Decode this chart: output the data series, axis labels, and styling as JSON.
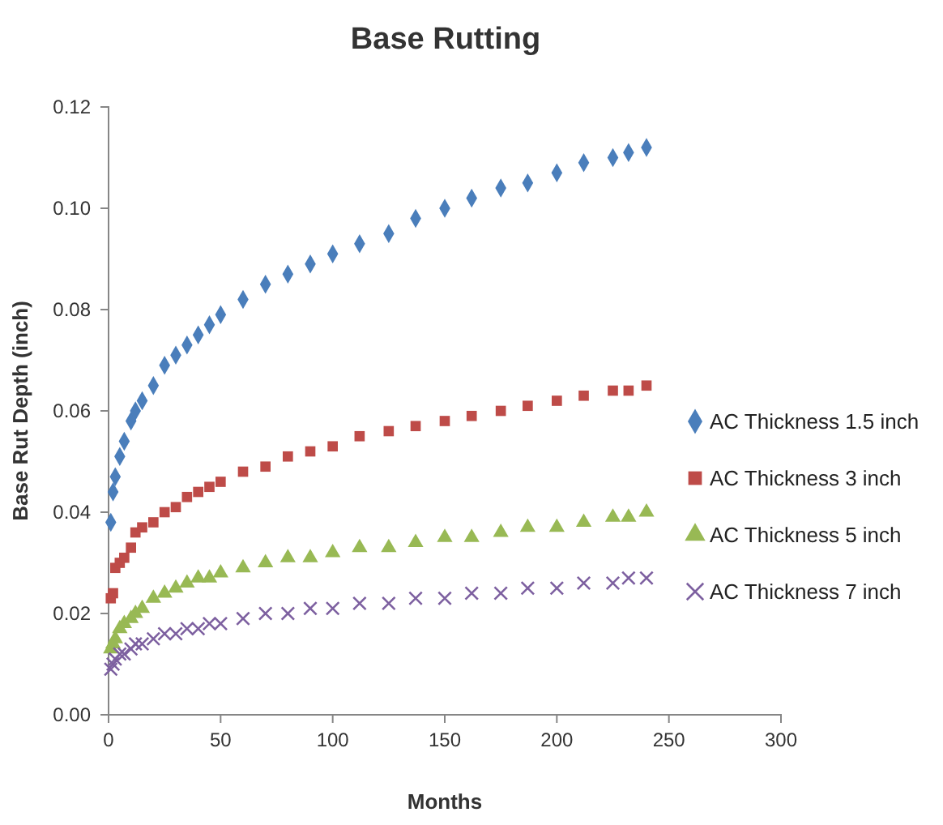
{
  "chart_data": {
    "type": "scatter",
    "title": "Base Rutting",
    "xlabel": "Months",
    "ylabel": "Base Rut Depth (inch)",
    "xlim": [
      0,
      300
    ],
    "xticks": [
      0,
      50,
      100,
      150,
      200,
      250,
      300
    ],
    "ylim": [
      0,
      0.12
    ],
    "yticks": [
      {
        "value": 0,
        "label": "0.00"
      },
      {
        "value": 0.02,
        "label": "0.02"
      },
      {
        "value": 0.04,
        "label": "0.04"
      },
      {
        "value": 0.06,
        "label": "0.06"
      },
      {
        "value": 0.08,
        "label": "0.08"
      },
      {
        "value": 0.1,
        "label": "0.10"
      },
      {
        "value": 0.12,
        "label": "0.12"
      }
    ],
    "grid": false,
    "legend": "right",
    "series": [
      {
        "name": "AC Thickness 1.5 inch",
        "color": "#4a7ebb",
        "marker": "diamond",
        "x": [
          1,
          2,
          3,
          5,
          7,
          10,
          12,
          15,
          20,
          25,
          30,
          35,
          40,
          45,
          50,
          60,
          70,
          80,
          90,
          100,
          112,
          125,
          137,
          150,
          162,
          175,
          187,
          200,
          212,
          225,
          232,
          240
        ],
        "values": [
          0.038,
          0.044,
          0.047,
          0.051,
          0.054,
          0.058,
          0.06,
          0.062,
          0.065,
          0.069,
          0.071,
          0.073,
          0.075,
          0.077,
          0.079,
          0.082,
          0.085,
          0.087,
          0.089,
          0.091,
          0.093,
          0.095,
          0.098,
          0.1,
          0.102,
          0.104,
          0.105,
          0.107,
          0.109,
          0.11,
          0.111,
          0.112
        ]
      },
      {
        "name": "AC Thickness 3 inch",
        "color": "#be4b48",
        "marker": "square",
        "x": [
          1,
          2,
          3,
          5,
          7,
          10,
          12,
          15,
          20,
          25,
          30,
          35,
          40,
          45,
          50,
          60,
          70,
          80,
          90,
          100,
          112,
          125,
          137,
          150,
          162,
          175,
          187,
          200,
          212,
          225,
          232,
          240
        ],
        "values": [
          0.023,
          0.024,
          0.029,
          0.03,
          0.031,
          0.033,
          0.036,
          0.037,
          0.038,
          0.04,
          0.041,
          0.043,
          0.044,
          0.045,
          0.046,
          0.048,
          0.049,
          0.051,
          0.052,
          0.053,
          0.055,
          0.056,
          0.057,
          0.058,
          0.059,
          0.06,
          0.061,
          0.062,
          0.063,
          0.064,
          0.064,
          0.065
        ]
      },
      {
        "name": "AC Thickness 5 inch",
        "color": "#98b954",
        "marker": "triangle",
        "x": [
          1,
          2,
          3,
          5,
          7,
          10,
          12,
          15,
          20,
          25,
          30,
          35,
          40,
          45,
          50,
          60,
          70,
          80,
          90,
          100,
          112,
          125,
          137,
          150,
          162,
          175,
          187,
          200,
          212,
          225,
          232,
          240
        ],
        "values": [
          0.013,
          0.014,
          0.015,
          0.017,
          0.018,
          0.019,
          0.02,
          0.021,
          0.023,
          0.024,
          0.025,
          0.026,
          0.027,
          0.027,
          0.028,
          0.029,
          0.03,
          0.031,
          0.031,
          0.032,
          0.033,
          0.033,
          0.034,
          0.035,
          0.035,
          0.036,
          0.037,
          0.037,
          0.038,
          0.039,
          0.039,
          0.04
        ]
      },
      {
        "name": "AC Thickness 7 inch",
        "color": "#7d60a0",
        "marker": "cross",
        "x": [
          1,
          2,
          3,
          5,
          7,
          10,
          12,
          15,
          20,
          25,
          30,
          35,
          40,
          45,
          50,
          60,
          70,
          80,
          90,
          100,
          112,
          125,
          137,
          150,
          162,
          175,
          187,
          200,
          212,
          225,
          232,
          240
        ],
        "values": [
          0.009,
          0.01,
          0.011,
          0.012,
          0.012,
          0.013,
          0.014,
          0.014,
          0.015,
          0.016,
          0.016,
          0.017,
          0.017,
          0.018,
          0.018,
          0.019,
          0.02,
          0.02,
          0.021,
          0.021,
          0.022,
          0.022,
          0.023,
          0.023,
          0.024,
          0.024,
          0.025,
          0.025,
          0.026,
          0.026,
          0.027,
          0.027
        ]
      }
    ]
  }
}
